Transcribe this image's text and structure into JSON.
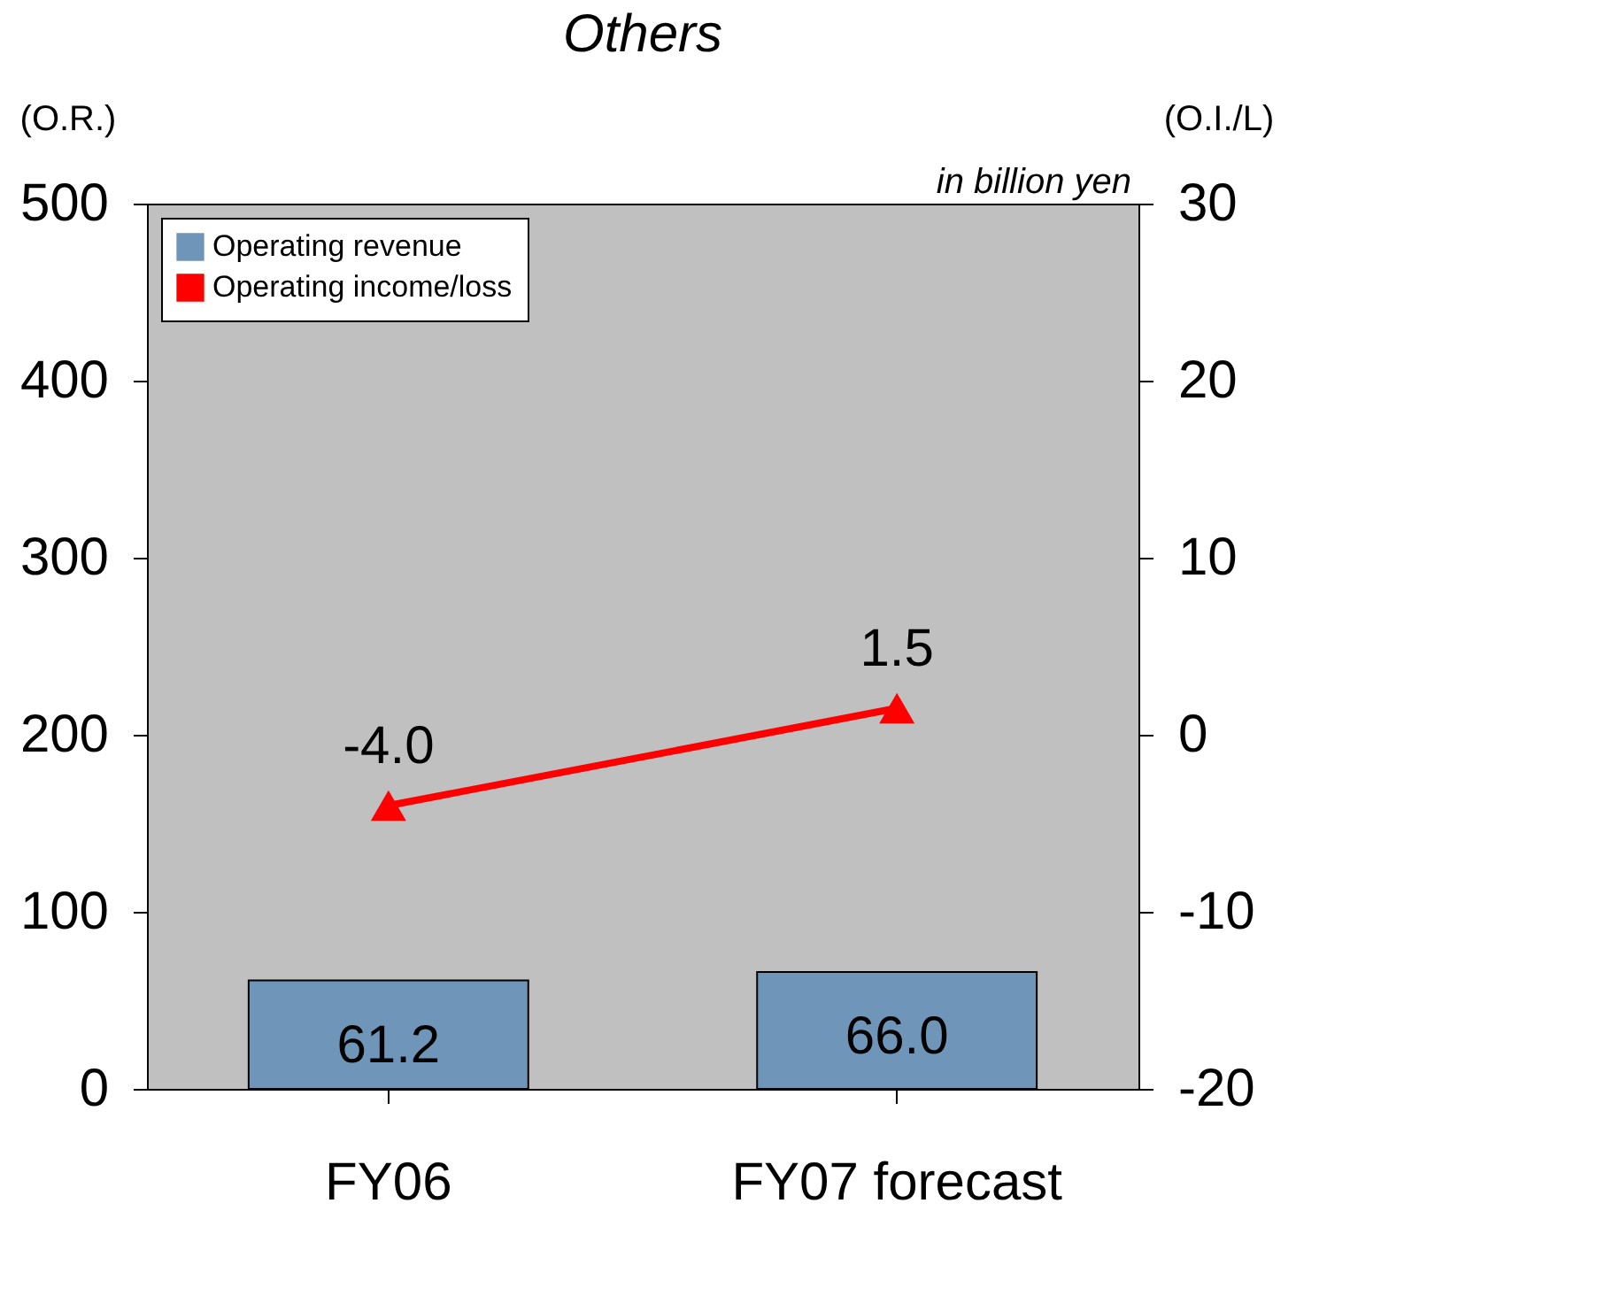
{
  "chart_data": {
    "type": "bar",
    "title": "Others",
    "ylabel": "(O.R.)",
    "y2label": "(O.I./L)",
    "annotations": [
      "in billion yen"
    ],
    "categories": [
      "FY06",
      "FY07 forecast"
    ],
    "series": [
      {
        "name": "Operating revenue",
        "color": "#6f96b8",
        "values": [
          61.2,
          66.0
        ],
        "value_labels": [
          "61.2",
          "66.0"
        ]
      },
      {
        "name": "Operating income/loss",
        "type": "line",
        "axis": "y2",
        "color": "#ff0000",
        "marker": "triangle",
        "values": [
          -4.0,
          1.5
        ],
        "value_labels": [
          "-4.0",
          "1.5"
        ]
      }
    ],
    "ylim": [
      0,
      500
    ],
    "yticks": [
      0,
      100,
      200,
      300,
      400,
      500
    ],
    "y2lim": [
      -20,
      30
    ],
    "y2ticks": [
      -20,
      -10,
      0,
      10,
      20,
      30
    ],
    "grid": false,
    "legend": "top left"
  }
}
